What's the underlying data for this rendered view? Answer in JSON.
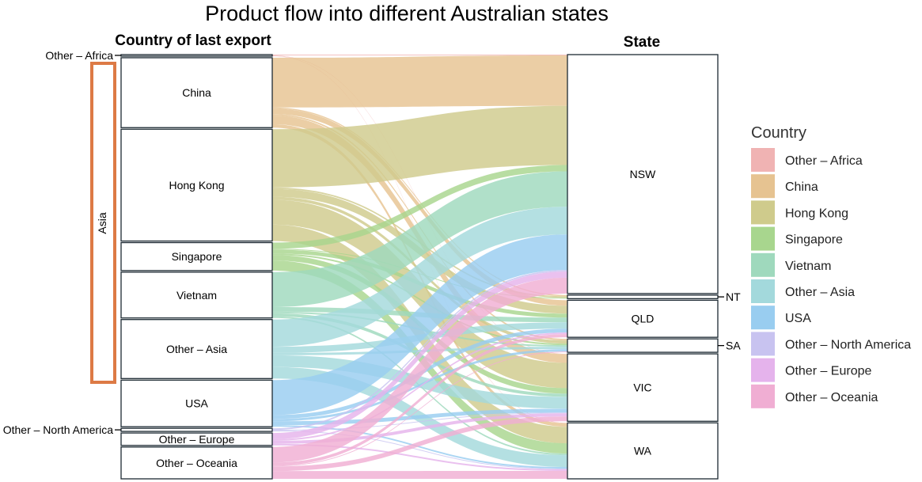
{
  "chart_data": {
    "type": "sankey",
    "title": "Product flow into different Australian states",
    "left_axis_title": "Country of last export",
    "right_axis_title": "State",
    "group_label": "Asia",
    "legend_title": "Country",
    "countries": [
      "Other – Africa",
      "China",
      "Hong Kong",
      "Singapore",
      "Vietnam",
      "Other – Asia",
      "USA",
      "Other – North America",
      "Other – Europe",
      "Other – Oceania"
    ],
    "states": [
      "NSW",
      "NT",
      "QLD",
      "SA",
      "VIC",
      "WA"
    ],
    "country_colors": [
      "#f0b3b3",
      "#e6c391",
      "#cfcb8c",
      "#a8d68e",
      "#9fd9bd",
      "#a3d9dc",
      "#99cdf0",
      "#c8c3f0",
      "#e5b3ec",
      "#f0aed3"
    ],
    "flows": [
      {
        "from": "Other – Africa",
        "to": "NSW",
        "value": 1
      },
      {
        "from": "Other – Africa",
        "to": "VIC",
        "value": 0.5
      },
      {
        "from": "Other – Africa",
        "to": "WA",
        "value": 0.5
      },
      {
        "from": "China",
        "to": "NSW",
        "value": 64
      },
      {
        "from": "China",
        "to": "NT",
        "value": 1.5
      },
      {
        "from": "China",
        "to": "QLD",
        "value": 7
      },
      {
        "from": "China",
        "to": "SA",
        "value": 2
      },
      {
        "from": "China",
        "to": "VIC",
        "value": 11
      },
      {
        "from": "China",
        "to": "WA",
        "value": 4.5
      },
      {
        "from": "Hong Kong",
        "to": "NSW",
        "value": 75
      },
      {
        "from": "Hong Kong",
        "to": "NT",
        "value": 2
      },
      {
        "from": "Hong Kong",
        "to": "QLD",
        "value": 10
      },
      {
        "from": "Hong Kong",
        "to": "SA",
        "value": 4
      },
      {
        "from": "Hong Kong",
        "to": "VIC",
        "value": 32
      },
      {
        "from": "Hong Kong",
        "to": "WA",
        "value": 21
      },
      {
        "from": "Singapore",
        "to": "NSW",
        "value": 8
      },
      {
        "from": "Singapore",
        "to": "NT",
        "value": 1
      },
      {
        "from": "Singapore",
        "to": "QLD",
        "value": 5
      },
      {
        "from": "Singapore",
        "to": "SA",
        "value": 2
      },
      {
        "from": "Singapore",
        "to": "VIC",
        "value": 7
      },
      {
        "from": "Singapore",
        "to": "WA",
        "value": 13
      },
      {
        "from": "Vietnam",
        "to": "NSW",
        "value": 45
      },
      {
        "from": "Vietnam",
        "to": "QLD",
        "value": 6
      },
      {
        "from": "Vietnam",
        "to": "SA",
        "value": 2
      },
      {
        "from": "Vietnam",
        "to": "VIC",
        "value": 4
      },
      {
        "from": "Vietnam",
        "to": "WA",
        "value": 2
      },
      {
        "from": "Other – Asia",
        "to": "NSW",
        "value": 35
      },
      {
        "from": "Other – Asia",
        "to": "QLD",
        "value": 8
      },
      {
        "from": "Other – Asia",
        "to": "SA",
        "value": 3
      },
      {
        "from": "Other – Asia",
        "to": "VIC",
        "value": 15
      },
      {
        "from": "Other – Asia",
        "to": "WA",
        "value": 15
      },
      {
        "from": "USA",
        "to": "NSW",
        "value": 45
      },
      {
        "from": "USA",
        "to": "QLD",
        "value": 5
      },
      {
        "from": "USA",
        "to": "SA",
        "value": 3
      },
      {
        "from": "USA",
        "to": "VIC",
        "value": 5
      },
      {
        "from": "USA",
        "to": "WA",
        "value": 2
      },
      {
        "from": "Other – North America",
        "to": "NSW",
        "value": 2
      },
      {
        "from": "Other – North America",
        "to": "VIC",
        "value": 1
      },
      {
        "from": "Other – North America",
        "to": "WA",
        "value": 1
      },
      {
        "from": "Other – Europe",
        "to": "NSW",
        "value": 8
      },
      {
        "from": "Other – Europe",
        "to": "QLD",
        "value": 2
      },
      {
        "from": "Other – Europe",
        "to": "VIC",
        "value": 4
      },
      {
        "from": "Other – Europe",
        "to": "WA",
        "value": 2
      },
      {
        "from": "Other – Oceania",
        "to": "NSW",
        "value": 20
      },
      {
        "from": "Other – Oceania",
        "to": "QLD",
        "value": 4
      },
      {
        "from": "Other – Oceania",
        "to": "SA",
        "value": 1
      },
      {
        "from": "Other – Oceania",
        "to": "VIC",
        "value": 6
      },
      {
        "from": "Other – Oceania",
        "to": "WA",
        "value": 10
      }
    ],
    "outside_labels_left": [
      "Other – Africa",
      "Other – North America"
    ],
    "outside_labels_right": [
      "NT",
      "SA"
    ],
    "legend_position": "right"
  }
}
